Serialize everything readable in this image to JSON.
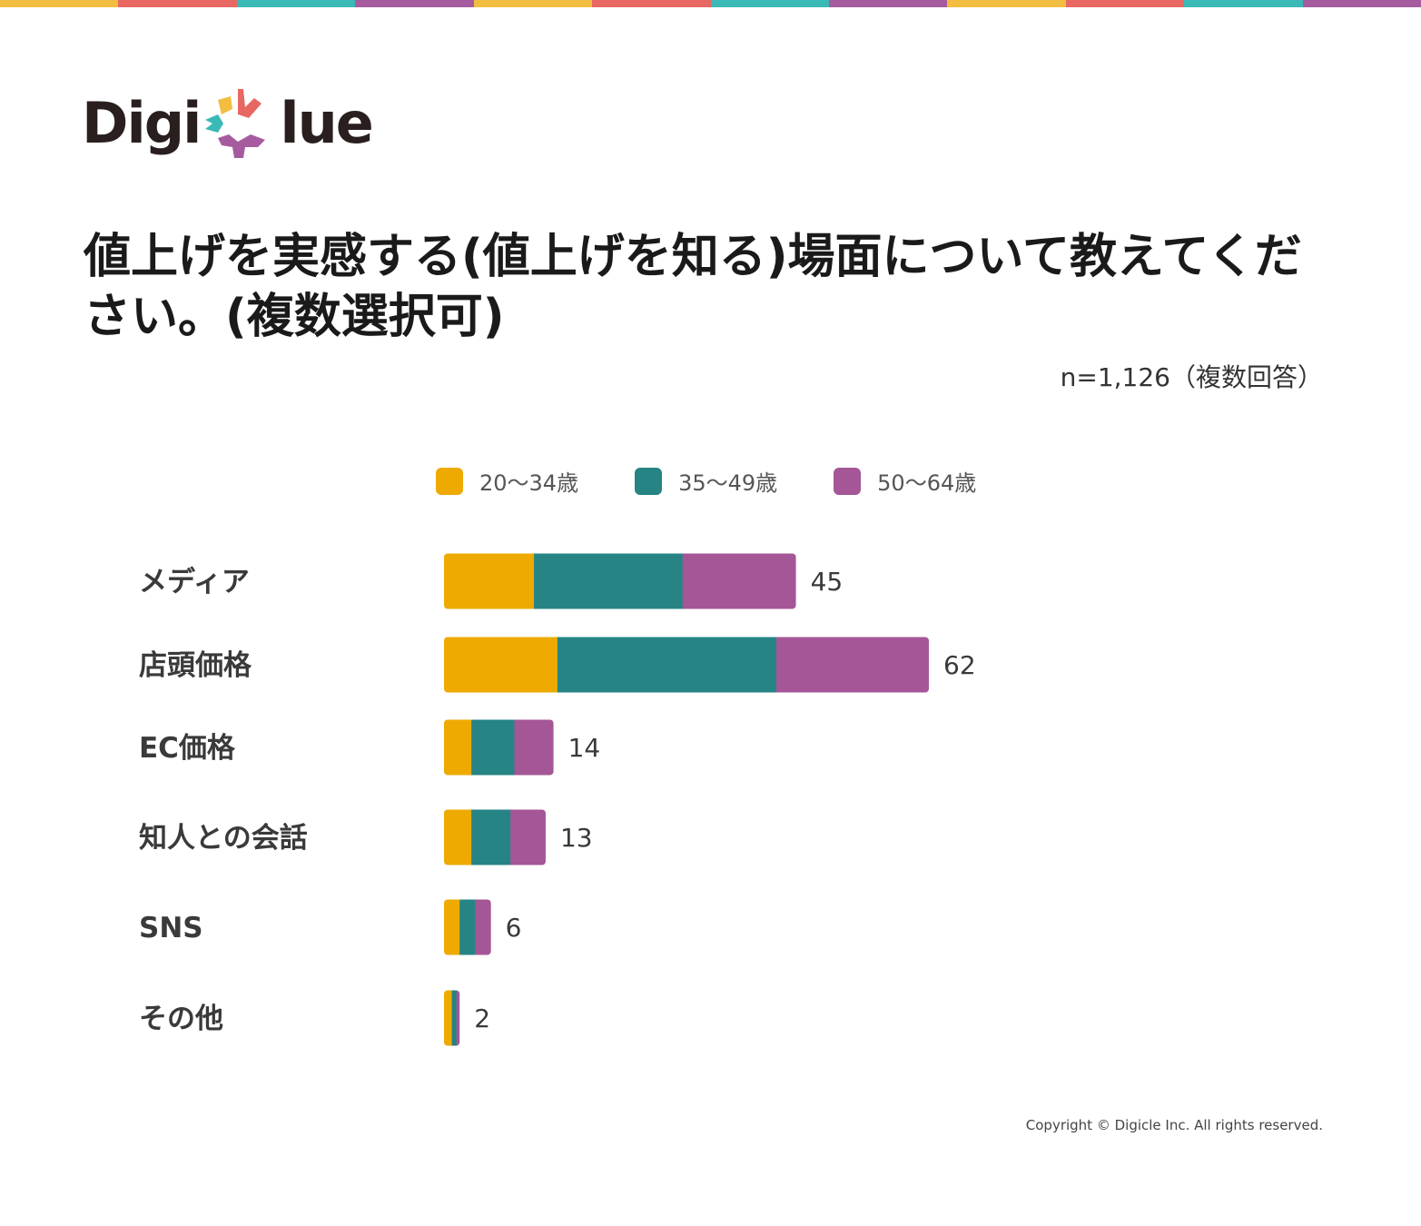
{
  "brand": {
    "name_left": "Digi",
    "name_right": "lue",
    "stripe_colors": [
      "#f2bd40",
      "#e86763",
      "#3ab9b6",
      "#a65b9f"
    ],
    "logo_mark": "digicle-logo-c-mark"
  },
  "title": "値上げを実感する(値上げを知る)場面について教えてください。(複数選択可)",
  "sample_note": "n=1,126（複数回答）",
  "copyright": "Copyright © Digicle Inc. All rights reserved.",
  "chart_data": {
    "type": "bar",
    "orientation": "horizontal",
    "stacked": true,
    "categories": [
      "メディア",
      "店頭価格",
      "EC価格",
      "知人との会話",
      "SNS",
      "その他"
    ],
    "totals": [
      45,
      62,
      14,
      13,
      6,
      2
    ],
    "series": [
      {
        "name": "20〜34歳",
        "color": "#eeaa00",
        "values": [
          11.5,
          14.5,
          3.5,
          3.5,
          2,
          1
        ]
      },
      {
        "name": "35〜49歳",
        "color": "#268484",
        "values": [
          19,
          28,
          5.5,
          5,
          2,
          0.6
        ]
      },
      {
        "name": "50〜64歳",
        "color": "#a55697",
        "values": [
          14.5,
          19.5,
          5,
          4.5,
          2,
          0.4
        ]
      }
    ],
    "title": "",
    "xlabel": "",
    "ylabel": "",
    "legend_position": "top",
    "grid": false
  }
}
